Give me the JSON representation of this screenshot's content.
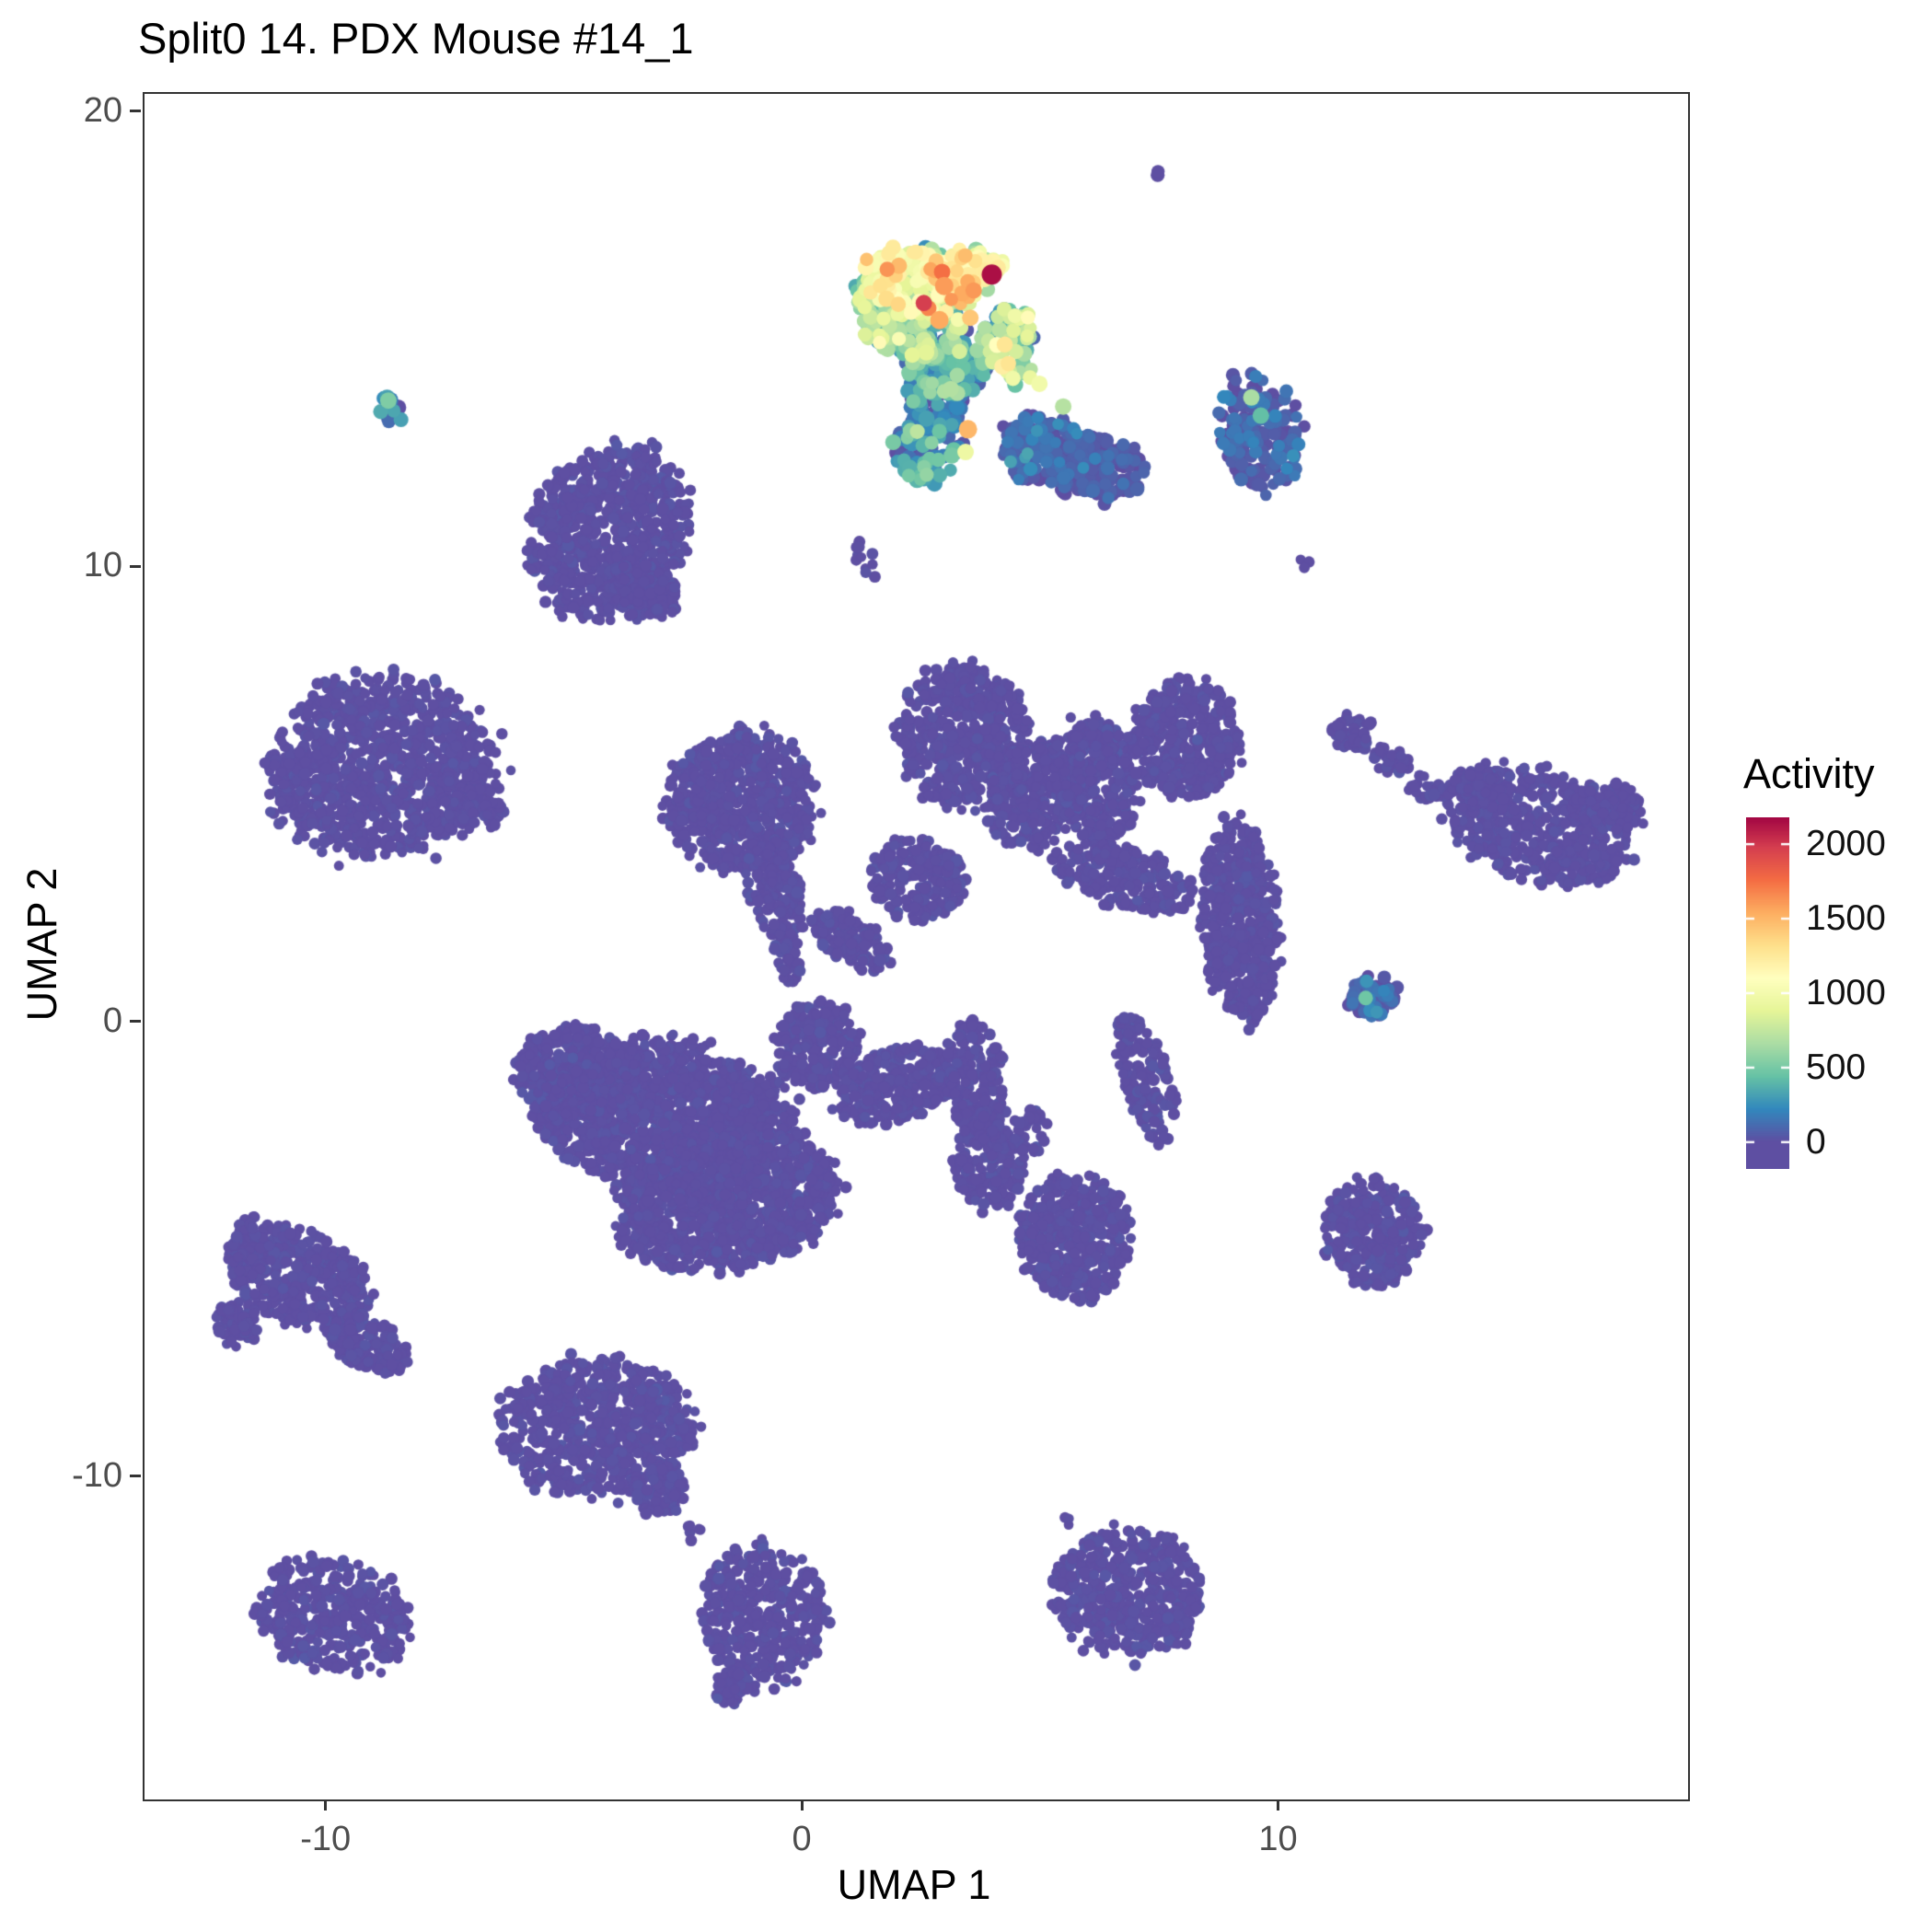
{
  "chart_data": {
    "type": "scatter",
    "title": "Split0 14. PDX Mouse #14_1",
    "xlabel": "UMAP 1",
    "ylabel": "UMAP 2",
    "xlim": [
      -13.84,
      18.57
    ],
    "ylim": [
      -17.06,
      20.42
    ],
    "x_ticks": [
      -10,
      0,
      10
    ],
    "y_ticks": [
      -10,
      0,
      10,
      20
    ],
    "grid": false,
    "colors": {
      "background": "#ffffff",
      "panel_border": "#333333",
      "title_text": "#000000",
      "axis_text": "#000000",
      "tick_text": "#4d4d4d",
      "base_point": "#5e4fa2"
    },
    "legend": {
      "title": "Activity",
      "position": "right",
      "ticks": [
        0,
        500,
        1000,
        1500,
        2000
      ],
      "value_domain": [
        0,
        2200
      ],
      "bar_display_domain": [
        -180,
        2180
      ],
      "colormap": "spectral_reversed",
      "color_stops": [
        {
          "t": 0.0,
          "c": "#5e4fa2"
        },
        {
          "t": 0.1,
          "c": "#3288bd"
        },
        {
          "t": 0.2,
          "c": "#66c2a5"
        },
        {
          "t": 0.3,
          "c": "#abdda4"
        },
        {
          "t": 0.4,
          "c": "#e6f598"
        },
        {
          "t": 0.5,
          "c": "#ffffbf"
        },
        {
          "t": 0.6,
          "c": "#fee08b"
        },
        {
          "t": 0.7,
          "c": "#fdae61"
        },
        {
          "t": 0.8,
          "c": "#f46d43"
        },
        {
          "t": 0.9,
          "c": "#d53e4f"
        },
        {
          "t": 1.0,
          "c": "#9e0142"
        }
      ]
    },
    "clusters": [
      {
        "cx": 7.5,
        "cy": 18.7,
        "rx": 0.12,
        "ry": 0.12,
        "rot": 0,
        "n": 2,
        "act": 0,
        "sd": 10,
        "r": 7
      },
      {
        "cx": -4.1,
        "cy": 10.8,
        "rx": 1.6,
        "ry": 1.9,
        "rot": -30,
        "n": 780,
        "act": 0,
        "sd": 15,
        "r": 6
      },
      {
        "cx": -3.35,
        "cy": 9.5,
        "rx": 0.75,
        "ry": 0.6,
        "rot": -30,
        "n": 130,
        "act": 0,
        "sd": 15,
        "r": 6
      },
      {
        "cx": 1.3,
        "cy": 10.2,
        "rx": 0.2,
        "ry": 0.45,
        "rot": 20,
        "n": 12,
        "act": 0,
        "sd": 10,
        "r": 6
      },
      {
        "cx": 10.5,
        "cy": 10.1,
        "rx": 0.13,
        "ry": 0.13,
        "rot": 0,
        "n": 3,
        "act": 0,
        "sd": 10,
        "r": 6
      },
      {
        "cx": -8.9,
        "cy": 5.6,
        "rx": 2.3,
        "ry": 1.95,
        "rot": 8,
        "n": 1000,
        "act": 0,
        "sd": 15,
        "r": 6
      },
      {
        "cx": -6.9,
        "cy": 4.7,
        "rx": 0.6,
        "ry": 0.5,
        "rot": 0,
        "n": 70,
        "act": 0,
        "sd": 15,
        "r": 6
      },
      {
        "cx": -1.3,
        "cy": 4.9,
        "rx": 1.55,
        "ry": 1.5,
        "rot": 0,
        "n": 650,
        "act": 0,
        "sd": 15,
        "r": 6
      },
      {
        "cx": -0.6,
        "cy": 2.9,
        "rx": 0.55,
        "ry": 1.1,
        "rot": 15,
        "n": 140,
        "act": 0,
        "sd": 15,
        "r": 6
      },
      {
        "cx": -0.35,
        "cy": 1.5,
        "rx": 0.3,
        "ry": 0.6,
        "rot": 10,
        "n": 35,
        "act": 0,
        "sd": 15,
        "r": 6
      },
      {
        "cx": 3.35,
        "cy": 6.3,
        "rx": 1.35,
        "ry": 1.55,
        "rot": 0,
        "n": 520,
        "act": 0,
        "sd": 15,
        "r": 6
      },
      {
        "cx": 4.75,
        "cy": 5.0,
        "rx": 0.9,
        "ry": 1.2,
        "rot": -15,
        "n": 280,
        "act": 0,
        "sd": 15,
        "r": 6
      },
      {
        "cx": 6.1,
        "cy": 5.3,
        "rx": 0.85,
        "ry": 1.35,
        "rot": 10,
        "n": 300,
        "act": 0,
        "sd": 15,
        "r": 6
      },
      {
        "cx": 8.0,
        "cy": 6.2,
        "rx": 1.2,
        "ry": 1.3,
        "rot": -10,
        "n": 400,
        "act": 0,
        "sd": 15,
        "r": 6
      },
      {
        "cx": 9.2,
        "cy": 2.2,
        "rx": 0.8,
        "ry": 2.2,
        "rot": 3,
        "n": 480,
        "act": 0,
        "sd": 15,
        "r": 6
      },
      {
        "cx": 6.7,
        "cy": 3.2,
        "rx": 1.5,
        "ry": 0.65,
        "rot": -15,
        "n": 220,
        "act": 0,
        "sd": 15,
        "r": 6
      },
      {
        "cx": 2.4,
        "cy": 3.2,
        "rx": 1.0,
        "ry": 0.9,
        "rot": -25,
        "n": 210,
        "act": 0,
        "sd": 15,
        "r": 6
      },
      {
        "cx": 1.0,
        "cy": 1.8,
        "rx": 0.95,
        "ry": 0.5,
        "rot": -30,
        "n": 110,
        "act": 0,
        "sd": 15,
        "r": 6
      },
      {
        "cx": 7.2,
        "cy": -1.2,
        "rx": 0.5,
        "ry": 1.5,
        "rot": 18,
        "n": 130,
        "act": 0,
        "sd": 15,
        "r": 6
      },
      {
        "cx": 11.5,
        "cy": 6.4,
        "rx": 0.4,
        "ry": 0.45,
        "rot": 0,
        "n": 45,
        "act": 0,
        "sd": 15,
        "r": 6
      },
      {
        "cx": 12.3,
        "cy": 5.8,
        "rx": 0.5,
        "ry": 0.3,
        "rot": -35,
        "n": 32,
        "act": 0,
        "sd": 15,
        "r": 6
      },
      {
        "cx": 13.1,
        "cy": 5.1,
        "rx": 0.45,
        "ry": 0.28,
        "rot": -30,
        "n": 26,
        "act": 0,
        "sd": 15,
        "r": 6
      },
      {
        "cx": 15.4,
        "cy": 4.35,
        "rx": 2.0,
        "ry": 1.2,
        "rot": -20,
        "n": 500,
        "act": 0,
        "sd": 15,
        "r": 6
      },
      {
        "cx": 16.9,
        "cy": 4.8,
        "rx": 0.75,
        "ry": 0.5,
        "rot": -15,
        "n": 110,
        "act": 0,
        "sd": 15,
        "r": 6
      },
      {
        "cx": 14.2,
        "cy": 5.2,
        "rx": 0.55,
        "ry": 0.4,
        "rot": -25,
        "n": 60,
        "act": 0,
        "sd": 15,
        "r": 6
      },
      {
        "cx": -2.9,
        "cy": -2.0,
        "rx": 2.7,
        "ry": 1.6,
        "rot": -8,
        "n": 1350,
        "act": 0,
        "sd": 15,
        "r": 6
      },
      {
        "cx": -1.6,
        "cy": -3.9,
        "rx": 2.3,
        "ry": 1.45,
        "rot": 12,
        "n": 1050,
        "act": 0,
        "sd": 15,
        "r": 6
      },
      {
        "cx": -4.8,
        "cy": -1.1,
        "rx": 1.25,
        "ry": 1.0,
        "rot": 0,
        "n": 380,
        "act": 0,
        "sd": 15,
        "r": 6
      },
      {
        "cx": 0.3,
        "cy": -0.5,
        "rx": 0.85,
        "ry": 0.95,
        "rot": 0,
        "n": 240,
        "act": 0,
        "sd": 15,
        "r": 6
      },
      {
        "cx": 1.9,
        "cy": -1.4,
        "rx": 1.25,
        "ry": 0.8,
        "rot": 18,
        "n": 280,
        "act": 0,
        "sd": 15,
        "r": 6
      },
      {
        "cx": 3.6,
        "cy": -1.2,
        "rx": 0.6,
        "ry": 1.35,
        "rot": 5,
        "n": 170,
        "act": 0,
        "sd": 15,
        "r": 6
      },
      {
        "cx": 3.9,
        "cy": -3.1,
        "rx": 0.75,
        "ry": 1.05,
        "rot": 0,
        "n": 200,
        "act": 0,
        "sd": 15,
        "r": 6
      },
      {
        "cx": 4.8,
        "cy": -2.4,
        "rx": 0.35,
        "ry": 0.5,
        "rot": 0,
        "n": 30,
        "act": 0,
        "sd": 15,
        "r": 6
      },
      {
        "cx": 5.7,
        "cy": -4.7,
        "rx": 1.15,
        "ry": 1.35,
        "rot": 8,
        "n": 430,
        "act": 0,
        "sd": 15,
        "r": 6
      },
      {
        "cx": -10.6,
        "cy": -5.6,
        "rx": 1.5,
        "ry": 1.0,
        "rot": -20,
        "n": 380,
        "act": 0,
        "sd": 15,
        "r": 6
      },
      {
        "cx": -9.2,
        "cy": -7.0,
        "rx": 1.0,
        "ry": 0.55,
        "rot": -25,
        "n": 150,
        "act": 0,
        "sd": 15,
        "r": 6
      },
      {
        "cx": -11.6,
        "cy": -5.0,
        "rx": 0.5,
        "ry": 0.7,
        "rot": 0,
        "n": 70,
        "act": 0,
        "sd": 15,
        "r": 6
      },
      {
        "cx": -11.9,
        "cy": -6.6,
        "rx": 0.45,
        "ry": 0.5,
        "rot": 0,
        "n": 60,
        "act": 0,
        "sd": 15,
        "r": 6
      },
      {
        "cx": -4.3,
        "cy": -8.9,
        "rx": 2.0,
        "ry": 1.5,
        "rot": 0,
        "n": 680,
        "act": 0,
        "sd": 15,
        "r": 6
      },
      {
        "cx": -3.05,
        "cy": -10.3,
        "rx": 0.55,
        "ry": 0.5,
        "rot": 0,
        "n": 80,
        "act": 0,
        "sd": 15,
        "r": 6
      },
      {
        "cx": -2.3,
        "cy": -11.2,
        "rx": 0.18,
        "ry": 0.25,
        "rot": 0,
        "n": 6,
        "act": 0,
        "sd": 10,
        "r": 6
      },
      {
        "cx": -0.85,
        "cy": -13.0,
        "rx": 1.3,
        "ry": 1.5,
        "rot": 10,
        "n": 360,
        "act": 0,
        "sd": 15,
        "r": 6
      },
      {
        "cx": -1.45,
        "cy": -14.6,
        "rx": 0.45,
        "ry": 0.45,
        "rot": 0,
        "n": 45,
        "act": 0,
        "sd": 15,
        "r": 6
      },
      {
        "cx": -9.9,
        "cy": -13.0,
        "rx": 1.6,
        "ry": 1.2,
        "rot": -12,
        "n": 360,
        "act": 0,
        "sd": 15,
        "r": 6
      },
      {
        "cx": 6.8,
        "cy": -12.5,
        "rx": 1.55,
        "ry": 1.35,
        "rot": 0,
        "n": 460,
        "act": 0,
        "sd": 15,
        "r": 6
      },
      {
        "cx": 5.6,
        "cy": -10.95,
        "rx": 0.15,
        "ry": 0.15,
        "rot": 0,
        "n": 3,
        "act": 0,
        "sd": 10,
        "r": 6
      },
      {
        "cx": 5.3,
        "cy": -12.4,
        "rx": 0.18,
        "ry": 0.15,
        "rot": 0,
        "n": 4,
        "act": 0,
        "sd": 10,
        "r": 6
      },
      {
        "cx": 11.95,
        "cy": -4.6,
        "rx": 1.0,
        "ry": 1.15,
        "rot": 0,
        "n": 280,
        "act": 0,
        "sd": 20,
        "r": 6
      },
      {
        "cx": 5.1,
        "cy": 12.6,
        "rx": 0.95,
        "ry": 0.75,
        "rot": -10,
        "n": 180,
        "act": 60,
        "sd": 90,
        "r": 7
      },
      {
        "cx": 6.2,
        "cy": 12.15,
        "rx": 0.95,
        "ry": 0.75,
        "rot": 0,
        "n": 170,
        "act": 30,
        "sd": 50,
        "r": 7
      },
      {
        "cx": 9.6,
        "cy": 13.0,
        "rx": 0.9,
        "ry": 1.25,
        "rot": 15,
        "n": 180,
        "act": 50,
        "sd": 80,
        "r": 7
      },
      {
        "cx": -8.7,
        "cy": 13.5,
        "rx": 0.22,
        "ry": 0.4,
        "rot": 20,
        "n": 10,
        "act": 200,
        "sd": 200,
        "r": 8
      },
      {
        "cx": 2.6,
        "cy": 12.6,
        "rx": 0.7,
        "ry": 0.7,
        "rot": 0,
        "n": 90,
        "act": 200,
        "sd": 170,
        "r": 8
      },
      {
        "cx": 2.75,
        "cy": 13.5,
        "rx": 0.6,
        "ry": 0.65,
        "rot": 0,
        "n": 80,
        "act": 180,
        "sd": 150,
        "r": 8
      },
      {
        "cx": 3.0,
        "cy": 14.4,
        "rx": 0.85,
        "ry": 0.65,
        "rot": 0,
        "n": 130,
        "act": 300,
        "sd": 200,
        "r": 8
      },
      {
        "cx": 2.35,
        "cy": 15.35,
        "rx": 1.05,
        "ry": 0.7,
        "rot": 0,
        "n": 190,
        "act": 500,
        "sd": 260,
        "r": 8
      },
      {
        "cx": 1.55,
        "cy": 15.9,
        "rx": 0.5,
        "ry": 0.55,
        "rot": 0,
        "n": 60,
        "act": 520,
        "sd": 260,
        "r": 8
      },
      {
        "cx": 2.6,
        "cy": 16.35,
        "rx": 1.25,
        "ry": 0.72,
        "rot": -5,
        "n": 240,
        "act": 850,
        "sd": 330,
        "r": 8
      },
      {
        "cx": 3.3,
        "cy": 16.6,
        "rx": 0.8,
        "ry": 0.4,
        "rot": 0,
        "n": 90,
        "act": 1050,
        "sd": 250,
        "r": 8
      },
      {
        "cx": 4.35,
        "cy": 14.9,
        "rx": 0.6,
        "ry": 0.85,
        "rot": 20,
        "n": 85,
        "act": 620,
        "sd": 300,
        "r": 8
      },
      {
        "cx": 11.95,
        "cy": 0.6,
        "rx": 0.5,
        "ry": 0.45,
        "rot": 0,
        "n": 70,
        "act": 40,
        "sd": 90,
        "r": 7
      }
    ],
    "special_points": [
      {
        "x": 3.95,
        "y": 16.45,
        "activity": 2150,
        "r": 11
      },
      {
        "x": 2.95,
        "y": 16.2,
        "activity": 1600,
        "r": 10
      },
      {
        "x": 2.85,
        "y": 15.45,
        "activity": 1550,
        "r": 10
      },
      {
        "x": 3.5,
        "y": 15.5,
        "activity": 1430,
        "r": 9
      },
      {
        "x": 3.45,
        "y": 13.05,
        "activity": 1500,
        "r": 10
      },
      {
        "x": 3.4,
        "y": 12.55,
        "activity": 950,
        "r": 9
      },
      {
        "x": 5.45,
        "y": 13.55,
        "activity": 700,
        "r": 9
      },
      {
        "x": 4.95,
        "y": 14.05,
        "activity": 980,
        "r": 9
      },
      {
        "x": -8.72,
        "y": 13.68,
        "activity": 520,
        "r": 9
      },
      {
        "x": 9.4,
        "y": 13.75,
        "activity": 660,
        "r": 9
      },
      {
        "x": 9.6,
        "y": 13.35,
        "activity": 430,
        "r": 9
      },
      {
        "x": 11.8,
        "y": 0.55,
        "activity": 470,
        "r": 8
      }
    ]
  }
}
